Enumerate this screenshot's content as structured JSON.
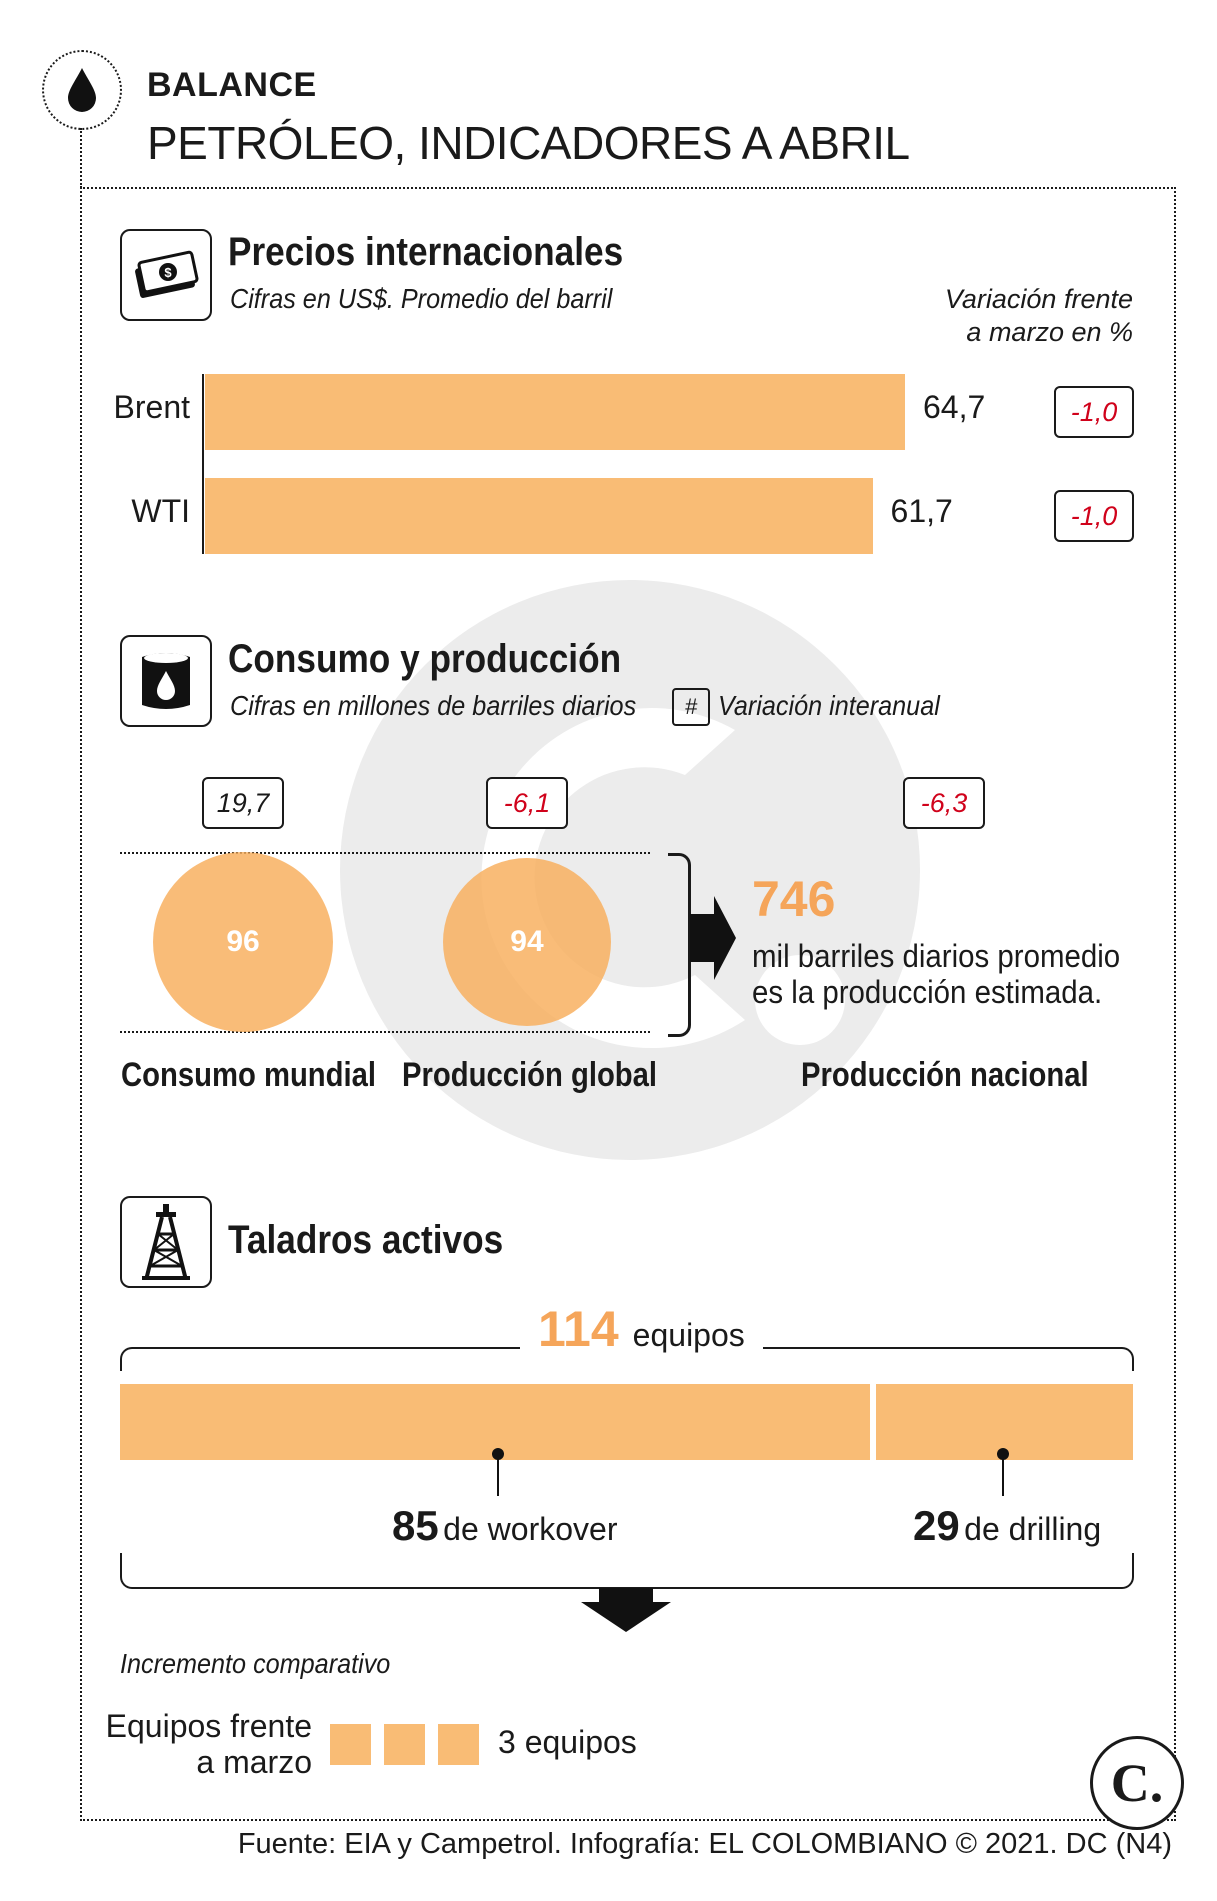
{
  "header": {
    "kicker": "BALANCE",
    "title": "PETRÓLEO, INDICADORES A ABRIL"
  },
  "prices": {
    "title": "Precios internacionales",
    "subtitle": "Cifras en US$. Promedio del barril",
    "variation_label_1": "Variación frente",
    "variation_label_2": "a marzo en %",
    "icon": "money-icon"
  },
  "consumption": {
    "title": "Consumo y producción",
    "subtitle": "Cifras en millones de barriles diarios",
    "legend_symbol": "#",
    "legend_label": "Variación interanual",
    "icon": "oil-barrel-icon",
    "items": [
      {
        "label": "Consumo mundial",
        "value": "96",
        "variation": "19,7"
      },
      {
        "label": "Producción global",
        "value": "94",
        "variation": "-6,1"
      },
      {
        "label": "Producción nacional",
        "value": "746",
        "variation": "-6,3"
      }
    ],
    "national_text_1": "mil barriles diarios promedio",
    "national_text_2": "es la producción estimada."
  },
  "rigs": {
    "title": "Taladros activos",
    "icon": "oil-rig-icon",
    "total_number": "114",
    "total_unit": "equipos",
    "workover_number": "85",
    "workover_label": "de workover",
    "drilling_number": "29",
    "drilling_label": "de drilling",
    "increment_title": "Incremento comparativo",
    "increment_label_1": "Equipos frente",
    "increment_label_2": "a marzo",
    "increment_value": "3 equipos",
    "increment_count": 3
  },
  "footer": {
    "source": "Fuente: EIA y Campetrol. Infografía: EL COLOMBIANO © 2021. DC (N4)",
    "logo_text": "C."
  },
  "colors": {
    "bar": "#f9bc75",
    "accent": "#f5a55a",
    "negative": "#d0021b",
    "watermark": "#ececec"
  },
  "chart_data": [
    {
      "type": "bar",
      "orientation": "horizontal",
      "categories": [
        "Brent",
        "WTI"
      ],
      "values": [
        64.7,
        61.7
      ],
      "value_labels": [
        "64,7",
        "61,7"
      ],
      "variation_labels": [
        "-1,0",
        "-1,0"
      ],
      "unit": "US$"
    },
    {
      "type": "bubble",
      "categories": [
        "Consumo mundial",
        "Producción global"
      ],
      "values": [
        96,
        94
      ]
    },
    {
      "type": "bar",
      "orientation": "horizontal-stacked",
      "categories": [
        "workover",
        "drilling"
      ],
      "values": [
        85,
        29
      ],
      "total": 114
    }
  ]
}
